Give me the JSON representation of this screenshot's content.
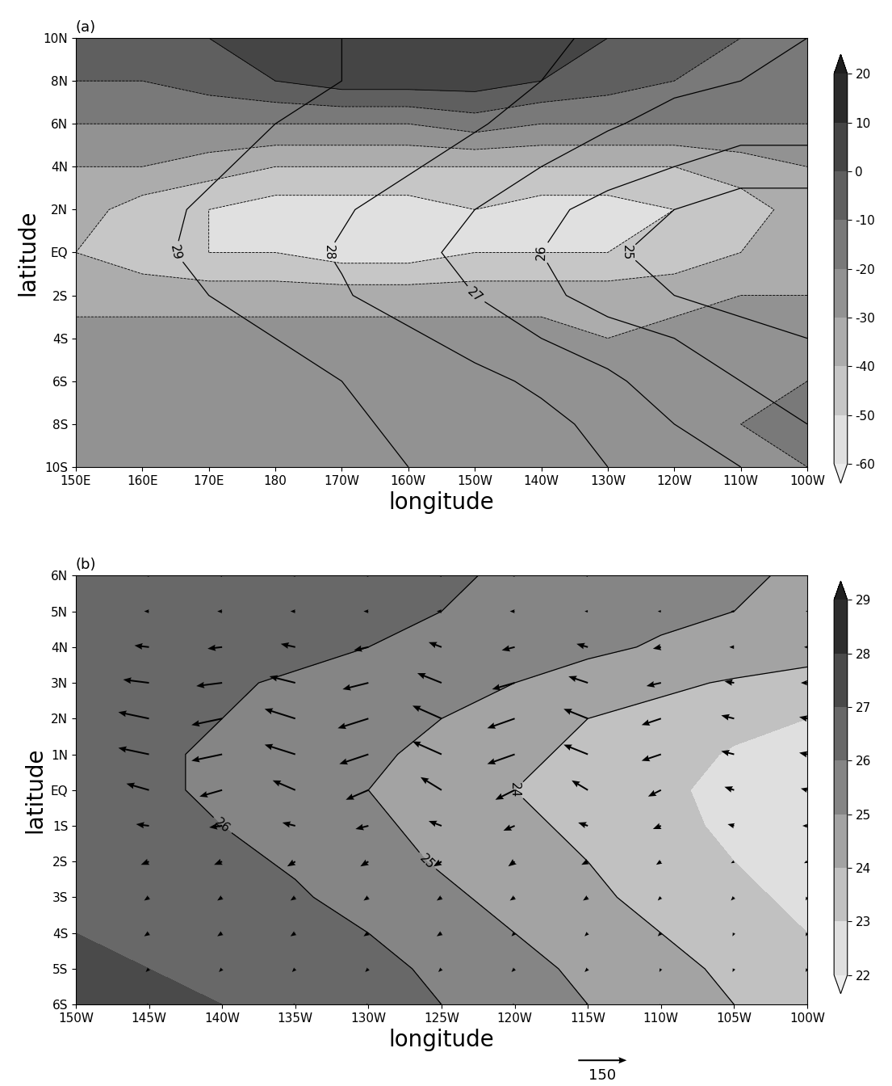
{
  "chart_data": [
    {
      "type": "contour",
      "title": "(a)",
      "x_label": "longitude",
      "y_label": "latitude",
      "x": [
        150,
        160,
        170,
        180,
        190,
        200,
        210,
        220,
        230,
        240,
        250,
        260
      ],
      "y": [
        -10,
        -8,
        -6,
        -4,
        -2,
        0,
        2,
        4,
        6,
        8,
        10
      ],
      "xlim": [
        150,
        260
      ],
      "ylim": [
        -10,
        10
      ],
      "xticks": [
        {
          "value": 150,
          "label": "150E"
        },
        {
          "value": 160,
          "label": "160E"
        },
        {
          "value": 170,
          "label": "170E"
        },
        {
          "value": 180,
          "label": "180"
        },
        {
          "value": 190,
          "label": "170W"
        },
        {
          "value": 200,
          "label": "160W"
        },
        {
          "value": 210,
          "label": "150W"
        },
        {
          "value": 220,
          "label": "140W"
        },
        {
          "value": 230,
          "label": "130W"
        },
        {
          "value": 240,
          "label": "120W"
        },
        {
          "value": 250,
          "label": "110W"
        },
        {
          "value": 260,
          "label": "100W"
        }
      ],
      "yticks": [
        {
          "value": -10,
          "label": "10S"
        },
        {
          "value": -8,
          "label": "8S"
        },
        {
          "value": -6,
          "label": "6S"
        },
        {
          "value": -4,
          "label": "4S"
        },
        {
          "value": -2,
          "label": "2S"
        },
        {
          "value": 0,
          "label": "EQ"
        },
        {
          "value": 2,
          "label": "2N"
        },
        {
          "value": 4,
          "label": "4N"
        },
        {
          "value": 6,
          "label": "6N"
        },
        {
          "value": 8,
          "label": "8N"
        },
        {
          "value": 10,
          "label": "10N"
        }
      ],
      "shading": [
        [
          -20,
          -20,
          -20,
          -20,
          -20,
          -20,
          -20,
          -20,
          -20,
          -20,
          -20,
          -20
        ],
        [
          -20,
          -20,
          -20,
          -20,
          -20,
          -20,
          -20,
          -20,
          -20,
          -20,
          -20,
          -15
        ],
        [
          -25,
          -25,
          -25,
          -25,
          -25,
          -20,
          -25,
          -25,
          -25,
          -25,
          -25,
          -20
        ],
        [
          -25,
          -25,
          -25,
          -25,
          -25,
          -25,
          -25,
          -25,
          -30,
          -25,
          -25,
          -25
        ],
        [
          -35,
          -35,
          -35,
          -35,
          -35,
          -35,
          -35,
          -35,
          -35,
          -35,
          -30,
          -30
        ],
        [
          -40,
          -45,
          -50,
          -50,
          -55,
          -55,
          -50,
          -50,
          -50,
          -45,
          -40,
          -35
        ],
        [
          -35,
          -45,
          -50,
          -55,
          -55,
          -55,
          -50,
          -55,
          -55,
          -50,
          -45,
          -35
        ],
        [
          -30,
          -30,
          -35,
          -40,
          -40,
          -40,
          -40,
          -40,
          -40,
          -40,
          -35,
          -30
        ],
        [
          -20,
          -20,
          -20,
          -20,
          -20,
          -20,
          -15,
          -20,
          -20,
          -20,
          -20,
          -20
        ],
        [
          -10,
          -10,
          -5,
          0,
          5,
          5,
          5,
          0,
          -5,
          -10,
          -10,
          -10
        ],
        [
          -5,
          -5,
          0,
          5,
          10,
          10,
          10,
          5,
          0,
          -5,
          -10,
          -10
        ]
      ],
      "shading_levels": [
        -60,
        -50,
        -40,
        -30,
        -20,
        -10,
        0,
        10,
        20
      ],
      "colorbar_ticks": [
        -60,
        -50,
        -40,
        -30,
        -20,
        -10,
        0,
        10,
        20
      ],
      "contour": [
        [
          29.5,
          29.5,
          29.5,
          29.3,
          29.2,
          29,
          29,
          28.5,
          28,
          27.5,
          27,
          26.5
        ],
        [
          29.6,
          29.6,
          29.5,
          29.3,
          29.1,
          28.9,
          28.7,
          28.3,
          27.7,
          27,
          26.5,
          26
        ],
        [
          29.6,
          29.6,
          29.5,
          29.2,
          29,
          28.8,
          28.3,
          27.8,
          27.2,
          26.5,
          26,
          25.5
        ],
        [
          29.5,
          29.5,
          29.3,
          29,
          28.6,
          28.2,
          27.6,
          27,
          26.5,
          26,
          25.5,
          25
        ],
        [
          29.4,
          29.3,
          29,
          28.6,
          28.1,
          27.5,
          27,
          26.3,
          25.5,
          25,
          24.5,
          24.5
        ],
        [
          29.4,
          29.2,
          28.8,
          28.4,
          27.9,
          27.3,
          26.7,
          26,
          25.2,
          24.5,
          24,
          24
        ],
        [
          29.4,
          29.2,
          28.9,
          28.5,
          28.1,
          27.6,
          27,
          26.3,
          25.6,
          25,
          24.5,
          24.5
        ],
        [
          29.5,
          29.4,
          29.1,
          28.8,
          28.5,
          28.1,
          27.6,
          27,
          26.5,
          26,
          25.5,
          25.5
        ],
        [
          29.5,
          29.5,
          29.3,
          29,
          28.8,
          28.5,
          28.1,
          27.6,
          27.1,
          26.7,
          26.5,
          26.5
        ],
        [
          29.5,
          29.5,
          29.4,
          29.2,
          29,
          28.7,
          28.4,
          28,
          27.5,
          27.2,
          27,
          27
        ],
        [
          29.5,
          29.5,
          29.4,
          29.2,
          29,
          28.8,
          28.5,
          28.2,
          27.8,
          27.5,
          27.2,
          27
        ]
      ],
      "contour_levels": [
        25,
        26,
        27,
        28,
        29
      ]
    },
    {
      "type": "contour",
      "title": "(b)",
      "x_label": "longitude",
      "y_label": "latitude",
      "x": [
        -150,
        -145,
        -140,
        -135,
        -130,
        -125,
        -120,
        -115,
        -110,
        -105,
        -100
      ],
      "y": [
        -6,
        -5,
        -4,
        -3,
        -2,
        -1,
        0,
        1,
        2,
        3,
        4,
        5,
        6
      ],
      "xlim": [
        -150,
        -100
      ],
      "ylim": [
        -6,
        6
      ],
      "xticks": [
        {
          "value": -150,
          "label": "150W"
        },
        {
          "value": -145,
          "label": "145W"
        },
        {
          "value": -140,
          "label": "140W"
        },
        {
          "value": -135,
          "label": "135W"
        },
        {
          "value": -130,
          "label": "130W"
        },
        {
          "value": -125,
          "label": "125W"
        },
        {
          "value": -120,
          "label": "120W"
        },
        {
          "value": -115,
          "label": "115W"
        },
        {
          "value": -110,
          "label": "110W"
        },
        {
          "value": -105,
          "label": "105W"
        },
        {
          "value": -100,
          "label": "100W"
        }
      ],
      "yticks": [
        {
          "value": -6,
          "label": "6S"
        },
        {
          "value": -5,
          "label": "5S"
        },
        {
          "value": -4,
          "label": "4S"
        },
        {
          "value": -3,
          "label": "3S"
        },
        {
          "value": -2,
          "label": "2S"
        },
        {
          "value": -1,
          "label": "1S"
        },
        {
          "value": 0,
          "label": "EQ"
        },
        {
          "value": 1,
          "label": "1N"
        },
        {
          "value": 2,
          "label": "2N"
        },
        {
          "value": 3,
          "label": "3N"
        },
        {
          "value": 4,
          "label": "4N"
        },
        {
          "value": 5,
          "label": "5N"
        },
        {
          "value": 6,
          "label": "6N"
        }
      ],
      "shading": [
        [
          28,
          27.5,
          27,
          27,
          26.5,
          26,
          25.5,
          25,
          24.5,
          24,
          23.5
        ],
        [
          27.5,
          27,
          26.8,
          26.6,
          26.3,
          25.8,
          25.3,
          24.8,
          24.3,
          23.8,
          23.3
        ],
        [
          27,
          26.8,
          26.6,
          26.4,
          26,
          25.6,
          25,
          24.5,
          24,
          23.5,
          23
        ],
        [
          26.8,
          26.6,
          26.4,
          26.1,
          25.7,
          25.2,
          24.7,
          24.2,
          23.7,
          23.2,
          22.8
        ],
        [
          26.6,
          26.4,
          26.2,
          25.9,
          25.4,
          24.9,
          24.4,
          24,
          23.5,
          23,
          22.6
        ],
        [
          26.4,
          26.2,
          26,
          25.7,
          25.2,
          24.7,
          24.2,
          23.8,
          23.3,
          22.8,
          22.4
        ],
        [
          26.3,
          26.1,
          25.9,
          25.6,
          25,
          24.5,
          24,
          23.6,
          23.2,
          22.7,
          22.3
        ],
        [
          26.3,
          26.1,
          25.9,
          25.6,
          25.2,
          24.7,
          24.2,
          23.8,
          23.4,
          22.9,
          22.5
        ],
        [
          26.4,
          26.2,
          26,
          25.7,
          25.4,
          25,
          24.5,
          24,
          23.7,
          23.3,
          23
        ],
        [
          26.5,
          26.3,
          26.1,
          25.9,
          25.7,
          25.4,
          25,
          24.6,
          24.2,
          23.9,
          23.6
        ],
        [
          26.6,
          26.5,
          26.4,
          26.2,
          26,
          25.8,
          25.5,
          25.2,
          24.9,
          24.7,
          24.5
        ],
        [
          26.7,
          26.6,
          26.5,
          26.4,
          26.2,
          26,
          25.8,
          25.5,
          25.2,
          25,
          24.8
        ],
        [
          26.8,
          26.7,
          26.6,
          26.5,
          26.3,
          26.1,
          25.9,
          25.6,
          25.3,
          25.1,
          24.9
        ]
      ],
      "shading_levels": [
        22,
        23,
        24,
        25,
        26,
        27,
        28,
        29
      ],
      "colorbar_ticks": [
        22,
        23,
        24,
        25,
        26,
        27,
        28,
        29
      ],
      "contour_levels": [
        24,
        25,
        26
      ],
      "u": [
        [
          -10,
          -10,
          -10,
          -10,
          -10,
          -10,
          -10,
          -10,
          -5,
          -5,
          -5
        ],
        [
          -10,
          -10,
          -10,
          -10,
          -10,
          -10,
          -10,
          -10,
          -5,
          -5,
          -5
        ],
        [
          -15,
          -15,
          -15,
          -15,
          -15,
          -15,
          -10,
          -10,
          -10,
          -5,
          -5
        ],
        [
          -15,
          -15,
          -15,
          -15,
          -15,
          -15,
          -15,
          -15,
          -10,
          -10,
          -5
        ],
        [
          -25,
          -25,
          -25,
          -25,
          -25,
          -25,
          -20,
          -20,
          -15,
          -10,
          -10
        ],
        [
          -40,
          -40,
          -40,
          -40,
          -40,
          -40,
          -35,
          -30,
          -25,
          -20,
          -15
        ],
        [
          -70,
          -70,
          -70,
          -70,
          -70,
          -65,
          -60,
          -50,
          -40,
          -30,
          -20
        ],
        [
          -95,
          -95,
          -95,
          -95,
          -90,
          -90,
          -85,
          -75,
          -60,
          -40,
          -25
        ],
        [
          -95,
          -95,
          -95,
          -95,
          -95,
          -90,
          -85,
          -75,
          -60,
          -40,
          -25
        ],
        [
          -80,
          -80,
          -80,
          -80,
          -80,
          -75,
          -70,
          -60,
          -45,
          -30,
          -20
        ],
        [
          -45,
          -45,
          -45,
          -45,
          -45,
          -40,
          -40,
          -35,
          -25,
          -15,
          -10
        ],
        [
          -15,
          -15,
          -15,
          -15,
          -15,
          -15,
          -15,
          -10,
          -10,
          -10,
          -5
        ],
        [
          -10,
          -10,
          -10,
          -10,
          -10,
          -10,
          -10,
          -10,
          -5,
          -5,
          -5
        ]
      ],
      "v": [
        [
          -10,
          -10,
          -10,
          -10,
          -10,
          -10,
          -10,
          -10,
          -10,
          -10,
          -10
        ],
        [
          -10,
          -10,
          -10,
          -10,
          -10,
          -10,
          -10,
          -10,
          -10,
          -10,
          -10
        ],
        [
          -10,
          -10,
          -10,
          -10,
          -10,
          -10,
          -10,
          -10,
          -10,
          -10,
          -10
        ],
        [
          -10,
          -10,
          -10,
          -10,
          -10,
          -10,
          -10,
          -10,
          -10,
          -10,
          -10
        ],
        [
          -10,
          -10,
          -10,
          -15,
          -15,
          -15,
          -15,
          -10,
          -10,
          -5,
          -5
        ],
        [
          0,
          5,
          -5,
          10,
          -10,
          15,
          -15,
          10,
          -10,
          5,
          0
        ],
        [
          10,
          20,
          -20,
          30,
          -30,
          40,
          -30,
          30,
          -20,
          10,
          5
        ],
        [
          10,
          20,
          -20,
          30,
          -30,
          40,
          -30,
          30,
          -20,
          10,
          5
        ],
        [
          10,
          20,
          -20,
          30,
          -30,
          40,
          -30,
          30,
          -20,
          10,
          5
        ],
        [
          5,
          10,
          -10,
          20,
          -20,
          30,
          -20,
          20,
          -10,
          5,
          0
        ],
        [
          0,
          5,
          -5,
          10,
          -10,
          15,
          -10,
          10,
          -5,
          0,
          0
        ],
        [
          0,
          0,
          0,
          0,
          0,
          0,
          0,
          0,
          0,
          0,
          0
        ],
        [
          0,
          0,
          0,
          0,
          0,
          0,
          0,
          0,
          0,
          0,
          0
        ]
      ],
      "vector_key": {
        "value": 150,
        "label": "150"
      }
    }
  ]
}
